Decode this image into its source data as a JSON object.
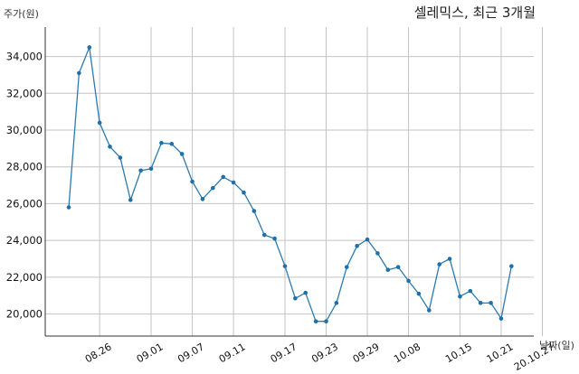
{
  "chart_data": {
    "type": "line",
    "title": "셀레믹스, 최근 3개월",
    "ylabel": "주가(원)",
    "xlabel": "날짜(일)",
    "ylim": [
      18800,
      35600
    ],
    "yticks": [
      20000,
      22000,
      24000,
      26000,
      28000,
      30000,
      32000,
      34000
    ],
    "ytick_labels": [
      "20,000",
      "22,000",
      "24,000",
      "26,000",
      "28,000",
      "30,000",
      "32,000",
      "34,000"
    ],
    "xticks": [
      {
        "index": 3,
        "label": "08.26"
      },
      {
        "index": 8,
        "label": "09.01"
      },
      {
        "index": 12,
        "label": "09.07"
      },
      {
        "index": 16,
        "label": "09.11"
      },
      {
        "index": 21,
        "label": "09.17"
      },
      {
        "index": 25,
        "label": "09.23"
      },
      {
        "index": 29,
        "label": "09.29"
      },
      {
        "index": 33,
        "label": "10.08"
      },
      {
        "index": 38,
        "label": "10.15"
      },
      {
        "index": 42,
        "label": "10.21"
      },
      {
        "index": 46,
        "label": "20.10.27"
      }
    ],
    "grid": true,
    "series": [
      {
        "values": [
          25800,
          33100,
          34500,
          30400,
          29100,
          28500,
          26200,
          27800,
          27900,
          29300,
          29250,
          28700,
          27200,
          26250,
          26850,
          27450,
          27150,
          26600,
          25600,
          24300,
          24100,
          22600,
          20850,
          21150,
          19600,
          19600,
          20600,
          22550,
          23700,
          24050,
          23300,
          22400,
          22550,
          21800,
          21100,
          20200,
          22700,
          23000,
          20950,
          21250,
          20600,
          20600,
          19750,
          22600
        ],
        "color": "#2b7bb0"
      }
    ]
  }
}
